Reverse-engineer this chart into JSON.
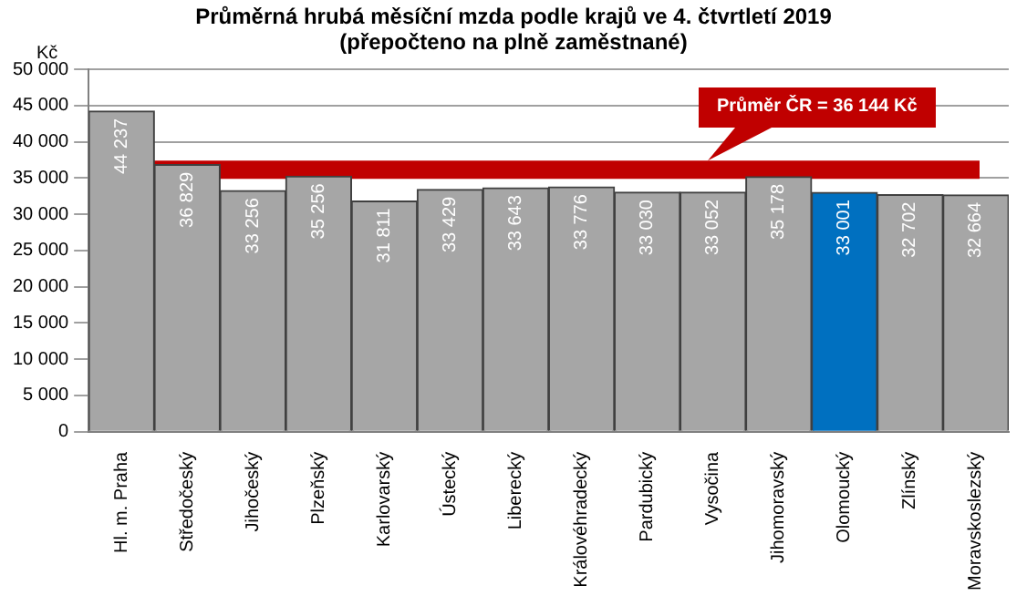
{
  "chart_data": {
    "type": "bar",
    "title": "Průměrná hrubá měsíční mzda podle krajů ve 4. čtvrtletí 2019",
    "subtitle": "(přepočteno na plně zaměstnané)",
    "ylabel": "Kč",
    "categories": [
      "Hl. m. Praha",
      "Středočeský",
      "Jihočeský",
      "Plzeňský",
      "Karlovarský",
      "Ústecký",
      "Liberecký",
      "Královéhradecký",
      "Pardubický",
      "Vysočina",
      "Jihomoravský",
      "Olomoucký",
      "Zlínský",
      "Moravskoslezský"
    ],
    "values": [
      44237,
      36829,
      33256,
      35256,
      31811,
      33429,
      33643,
      33776,
      33030,
      33052,
      35178,
      33001,
      32702,
      32664
    ],
    "colors": [
      "#a6a6a6",
      "#a6a6a6",
      "#a6a6a6",
      "#a6a6a6",
      "#a6a6a6",
      "#a6a6a6",
      "#a6a6a6",
      "#a6a6a6",
      "#a6a6a6",
      "#a6a6a6",
      "#a6a6a6",
      "#0070c0",
      "#a6a6a6",
      "#a6a6a6"
    ],
    "value_labels": [
      "44 237",
      "36 829",
      "33 256",
      "35 256",
      "31 811",
      "33 429",
      "33 643",
      "33 776",
      "33 030",
      "33 052",
      "35 178",
      "33 001",
      "32 702",
      "32 664"
    ],
    "ylim": [
      0,
      50000
    ],
    "yticks": [
      {
        "value": 0,
        "label": "0"
      },
      {
        "value": 5000,
        "label": "5 000"
      },
      {
        "value": 10000,
        "label": "10 000"
      },
      {
        "value": 15000,
        "label": "15 000"
      },
      {
        "value": 20000,
        "label": "20 000"
      },
      {
        "value": 25000,
        "label": "25 000"
      },
      {
        "value": 30000,
        "label": "30 000"
      },
      {
        "value": 35000,
        "label": "35 000"
      },
      {
        "value": 40000,
        "label": "40 000"
      },
      {
        "value": 45000,
        "label": "45 000"
      },
      {
        "value": 50000,
        "label": "50 000"
      }
    ],
    "ref_lines": [
      {
        "axis": "y",
        "value": 36144,
        "label": "Průměr ČR = 36 144 Kč",
        "color": "#c00000"
      }
    ],
    "grid": "y",
    "legend": false
  }
}
